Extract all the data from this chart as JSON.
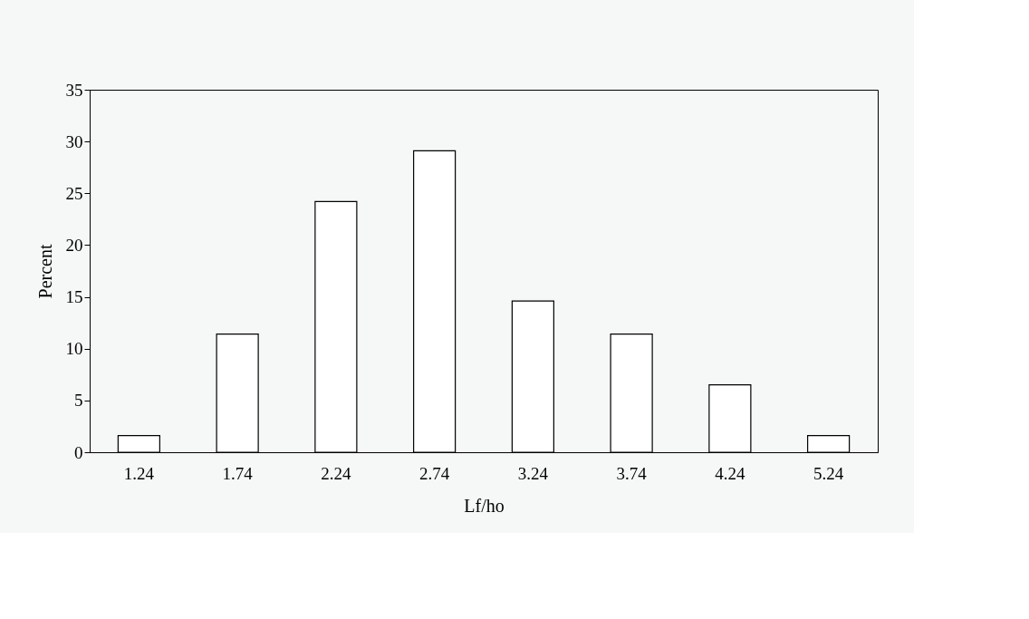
{
  "chart_data": {
    "type": "bar",
    "xlabel": "Lf/ho",
    "ylabel": "Percent",
    "categories": [
      "1.24",
      "1.74",
      "2.24",
      "2.74",
      "3.24",
      "3.74",
      "4.24",
      "5.24"
    ],
    "values": [
      1.6,
      11.4,
      24.2,
      29.1,
      14.6,
      11.4,
      6.5,
      1.6
    ],
    "color": "#ffffff",
    "ylim": [
      0,
      35
    ],
    "yticks": [
      0,
      5,
      10,
      15,
      20,
      25,
      30,
      35
    ],
    "grid": false
  }
}
